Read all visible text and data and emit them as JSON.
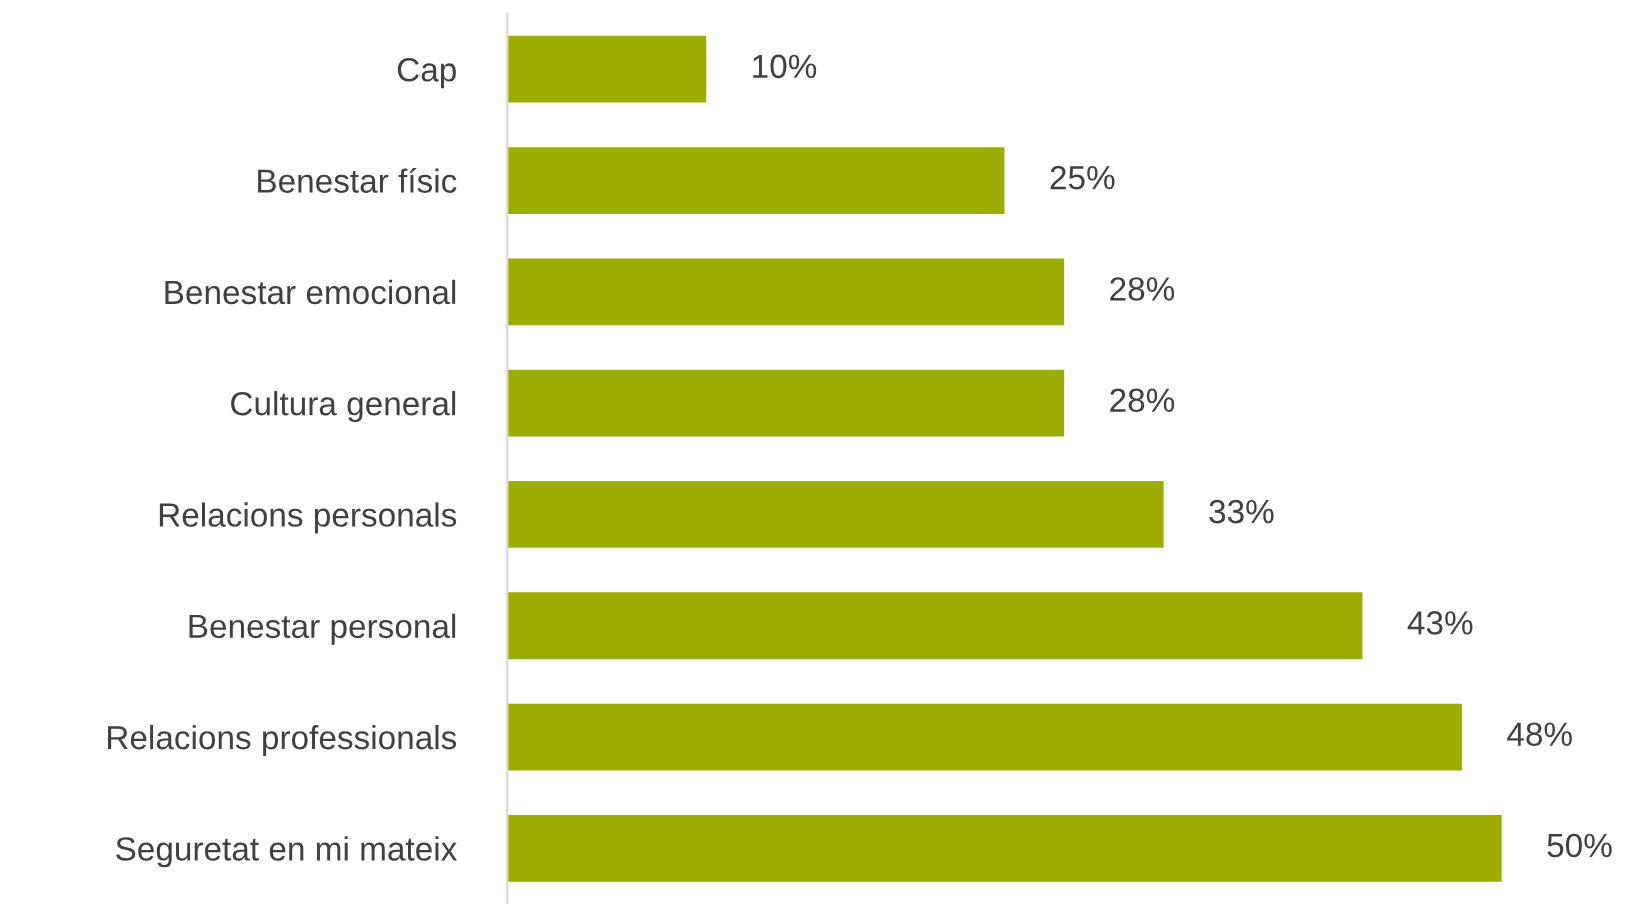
{
  "chart_data": {
    "type": "bar",
    "orientation": "horizontal",
    "categories": [
      "Cap",
      "Benestar físic",
      "Benestar emocional",
      "Cultura general",
      "Relacions personals",
      "Benestar personal",
      "Relacions professionals",
      "Seguretat en mi mateix"
    ],
    "values": [
      10,
      25,
      28,
      28,
      33,
      43,
      48,
      50
    ],
    "value_labels": [
      "10%",
      "25%",
      "28%",
      "28%",
      "33%",
      "43%",
      "48%",
      "50%"
    ],
    "color": "#9bad00",
    "grid": false,
    "legend": false,
    "tick_labels": "y"
  }
}
